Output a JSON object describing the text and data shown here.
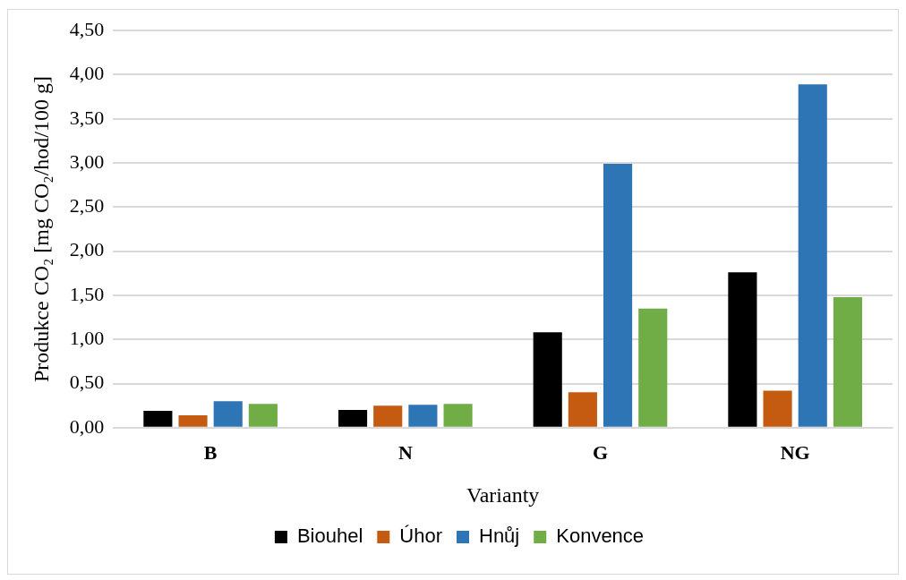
{
  "chart_data": {
    "type": "bar",
    "xlabel": "Varianty",
    "ylabel": "Produkce CO₂ [mg CO₂/hod/100 g]",
    "categories": [
      "B",
      "N",
      "G",
      "NG"
    ],
    "series": [
      {
        "name": "Biouhel",
        "color": "#000000",
        "values": [
          0.19,
          0.2,
          1.08,
          1.76
        ]
      },
      {
        "name": "Úhor",
        "color": "#c55a11",
        "values": [
          0.14,
          0.25,
          0.4,
          0.42
        ]
      },
      {
        "name": "Hnůj",
        "color": "#2e75b6",
        "values": [
          0.3,
          0.26,
          2.99,
          3.89
        ]
      },
      {
        "name": "Konvence",
        "color": "#70ad47",
        "values": [
          0.27,
          0.27,
          1.35,
          1.48
        ]
      }
    ],
    "ylim": [
      0,
      4.5
    ],
    "yticks": [
      {
        "value": 0,
        "label": "0,00"
      },
      {
        "value": 0.5,
        "label": "0,50"
      },
      {
        "value": 1,
        "label": "1,00"
      },
      {
        "value": 1.5,
        "label": "1,50"
      },
      {
        "value": 2,
        "label": "2,00"
      },
      {
        "value": 2.5,
        "label": "2,50"
      },
      {
        "value": 3,
        "label": "3,00"
      },
      {
        "value": 3.5,
        "label": "3,50"
      },
      {
        "value": 4,
        "label": "4,00"
      },
      {
        "value": 4.5,
        "label": "4,50"
      }
    ],
    "grid": "y",
    "legend": "bottom"
  }
}
